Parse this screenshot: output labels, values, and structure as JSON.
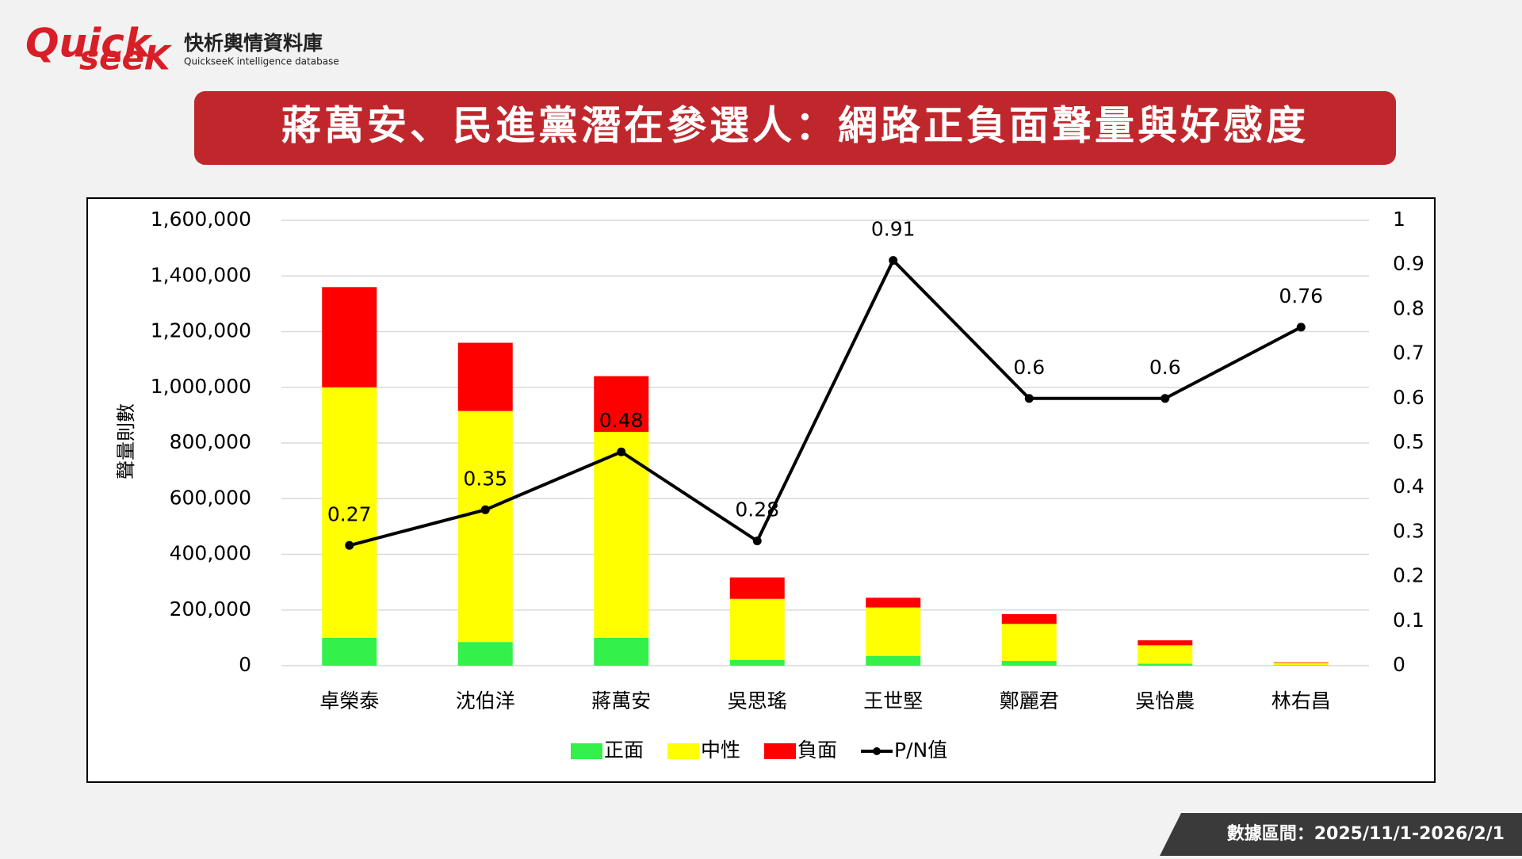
{
  "header": {
    "logo_top": "Quick",
    "logo_bottom": "seeK",
    "brand": "快析輿情資料庫",
    "brand_sub": "QuickseeK intelligence database"
  },
  "footer": "數據區間：2025/11/1-2026/2/1",
  "chart_data": {
    "type": "bar",
    "stacked": true,
    "title": "蔣萬安、民進黨潛在參選人：網路正負面聲量與好感度",
    "y_label": "聲量則數",
    "categories": [
      "卓榮泰",
      "沈伯洋",
      "蔣萬安",
      "吳思瑤",
      "王世堅",
      "鄭麗君",
      "吳怡農",
      "林右昌"
    ],
    "series": [
      {
        "name": "正面",
        "color": "#33f04a",
        "values": [
          100000,
          85000,
          100000,
          20000,
          35000,
          17000,
          7000,
          2000
        ]
      },
      {
        "name": "中性",
        "color": "#ffff00",
        "values": [
          900000,
          830000,
          740000,
          220000,
          174000,
          133000,
          66000,
          8000
        ]
      },
      {
        "name": "負面",
        "color": "#ff0000",
        "values": [
          360000,
          245000,
          200000,
          77000,
          35000,
          35000,
          18000,
          2000
        ]
      },
      {
        "name": "P/N值",
        "color": "#000000",
        "type": "line",
        "axis": "y2",
        "values": [
          0.27,
          0.35,
          0.48,
          0.28,
          0.91,
          0.6,
          0.6,
          0.76
        ]
      }
    ],
    "ylim": [
      0,
      1600000
    ],
    "yticks": [
      0,
      {
        "value": 200000,
        "label": "200,000"
      },
      {
        "value": 400000,
        "label": "400,000"
      },
      {
        "value": 600000,
        "label": "600,000"
      },
      {
        "value": 800000,
        "label": "800,000"
      },
      {
        "value": 1000000,
        "label": "1,000,000"
      },
      {
        "value": 1200000,
        "label": "1,200,000"
      },
      {
        "value": 1400000,
        "label": "1,400,000"
      },
      {
        "value": 1600000,
        "label": "1,600,000"
      }
    ],
    "y2lim": [
      0,
      1
    ],
    "y2ticks": [
      0,
      0.1,
      0.2,
      0.3,
      0.4,
      0.5,
      0.6,
      0.7,
      0.8,
      0.9,
      1
    ],
    "grid": true,
    "legend": "bottom"
  }
}
